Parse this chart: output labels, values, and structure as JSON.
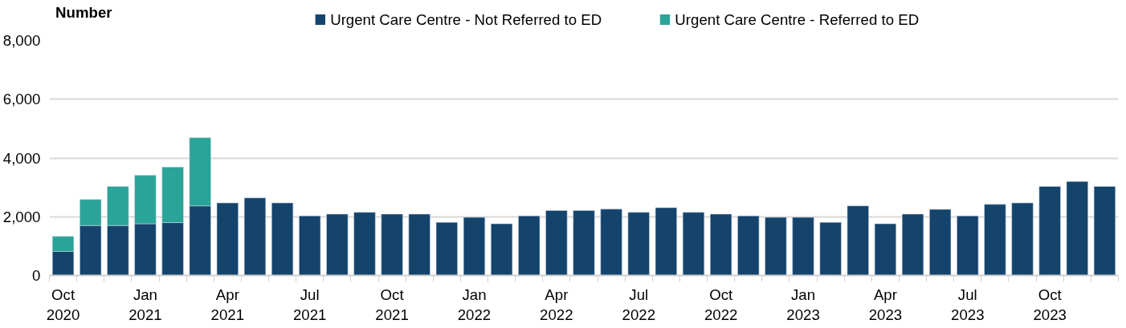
{
  "chart_data": {
    "type": "bar",
    "stacked": true,
    "ylabel": "Number",
    "categories": [
      "Oct\n2020",
      null,
      null,
      "Jan\n2021",
      null,
      null,
      "Apr\n2021",
      null,
      null,
      "Jul\n2021",
      null,
      null,
      "Oct\n2021",
      null,
      null,
      "Jan\n2022",
      null,
      null,
      "Apr\n2022",
      null,
      null,
      "Jul\n2022",
      null,
      null,
      "Oct\n2022",
      null,
      null,
      "Jan\n2023",
      null,
      null,
      "Apr\n2023",
      null,
      null,
      "Jul\n2023",
      null,
      null,
      "Oct\n2023",
      null,
      null
    ],
    "series": [
      {
        "name": "Urgent Care Centre - Not Referred to ED",
        "color": "#14436b",
        "values": [
          820,
          1700,
          1700,
          1760,
          1800,
          2370,
          2470,
          2640,
          2470,
          2030,
          2090,
          2150,
          2090,
          2090,
          1810,
          1980,
          1760,
          2030,
          2210,
          2210,
          2260,
          2150,
          2310,
          2150,
          2090,
          2030,
          1980,
          1980,
          1810,
          2370,
          1760,
          2090,
          2250,
          2030,
          2420,
          2470,
          3030,
          3200,
          3030
        ]
      },
      {
        "name": "Urgent Care Centre - Referred to ED",
        "color": "#2aa398",
        "values": [
          510,
          890,
          1330,
          1650,
          1890,
          2320,
          null,
          null,
          null,
          null,
          null,
          null,
          null,
          null,
          null,
          null,
          null,
          null,
          null,
          null,
          null,
          null,
          null,
          null,
          null,
          null,
          null,
          null,
          null,
          null,
          null,
          null,
          null,
          null,
          null,
          null,
          null,
          null,
          null
        ]
      }
    ],
    "ylim": [
      0,
      8000
    ],
    "yticks": [
      {
        "value": 0,
        "label": "0"
      },
      {
        "value": 2000,
        "label": "2,000"
      },
      {
        "value": 4000,
        "label": "4,000"
      },
      {
        "value": 6000,
        "label": "6,000"
      },
      {
        "value": 8000,
        "label": "8,000"
      }
    ],
    "grid": "y",
    "legend": "top"
  }
}
